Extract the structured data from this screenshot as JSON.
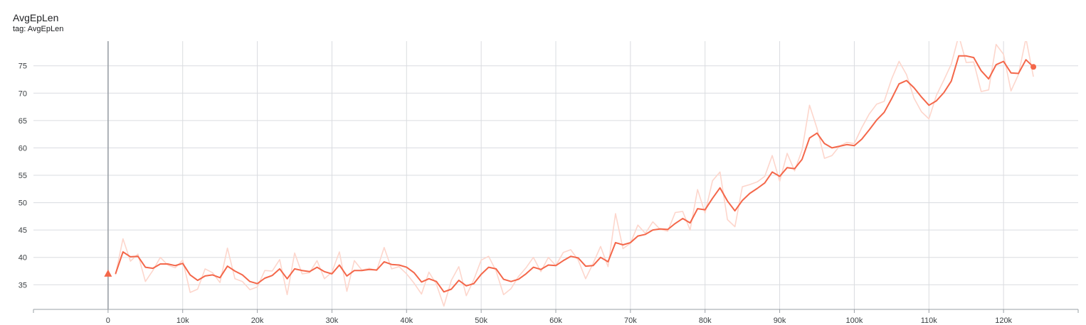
{
  "header": {
    "title": "AvgEpLen",
    "subtitle": "tag: AvgEpLen"
  },
  "colors": {
    "smoothed": "#f4674a",
    "raw": "#fdd6cc",
    "grid": "#dadce0",
    "axis": "#9aa0a6"
  },
  "chart_data": {
    "type": "line",
    "title": "AvgEpLen",
    "subtitle": "tag: AvgEpLen",
    "xlabel": "",
    "ylabel": "",
    "xlim": [
      -10000,
      130000
    ],
    "ylim": [
      30.5,
      79.5
    ],
    "x_ticks": [
      0,
      10000,
      20000,
      30000,
      40000,
      50000,
      60000,
      70000,
      80000,
      90000,
      100000,
      110000,
      120000
    ],
    "x_tick_labels": [
      "0",
      "10k",
      "20k",
      "30k",
      "40k",
      "50k",
      "60k",
      "70k",
      "80k",
      "90k",
      "100k",
      "110k",
      "120k"
    ],
    "y_ticks": [
      35,
      40,
      45,
      50,
      55,
      60,
      65,
      70,
      75
    ],
    "y_tick_labels": [
      "35",
      "40",
      "45",
      "50",
      "55",
      "60",
      "65",
      "70",
      "75"
    ],
    "grid": true,
    "x": [
      1000,
      2000,
      3000,
      4000,
      5000,
      6000,
      7000,
      8000,
      9000,
      10000,
      11000,
      12000,
      13000,
      14000,
      15000,
      16000,
      17000,
      18000,
      19000,
      20000,
      21000,
      22000,
      23000,
      24000,
      25000,
      26000,
      27000,
      28000,
      29000,
      30000,
      31000,
      32000,
      33000,
      34000,
      35000,
      36000,
      37000,
      38000,
      39000,
      40000,
      41000,
      42000,
      43000,
      44000,
      45000,
      46000,
      47000,
      48000,
      49000,
      50000,
      51000,
      52000,
      53000,
      54000,
      55000,
      56000,
      57000,
      58000,
      59000,
      60000,
      61000,
      62000,
      63000,
      64000,
      65000,
      66000,
      67000,
      68000,
      69000,
      70000,
      71000,
      72000,
      73000,
      74000,
      75000,
      76000,
      77000,
      78000,
      79000,
      80000,
      81000,
      82000,
      83000,
      84000,
      85000,
      86000,
      87000,
      88000,
      89000,
      90000,
      91000,
      92000,
      93000,
      94000,
      95000,
      96000,
      97000,
      98000,
      99000,
      100000,
      101000,
      102000,
      103000,
      104000,
      105000,
      106000,
      107000,
      108000,
      109000,
      110000,
      111000,
      112000,
      113000,
      114000,
      115000,
      116000,
      117000,
      118000,
      119000,
      120000,
      121000,
      122000,
      123000,
      124000
    ],
    "series": [
      {
        "role": "raw",
        "values": [
          36.8,
          43.4,
          39.3,
          40.6,
          35.6,
          37.6,
          40.0,
          38.6,
          38.1,
          39.5,
          33.6,
          34.2,
          37.9,
          37.2,
          35.4,
          41.7,
          36.1,
          35.6,
          34.1,
          34.6,
          37.6,
          37.5,
          39.6,
          33.2,
          40.8,
          37.0,
          37.2,
          39.4,
          36.1,
          37.3,
          41.0,
          33.8,
          39.4,
          37.7,
          38.0,
          37.6,
          41.8,
          37.9,
          38.3,
          37.0,
          35.3,
          33.3,
          37.3,
          35.1,
          31.1,
          35.8,
          38.3,
          33.0,
          35.9,
          39.5,
          40.2,
          37.5,
          33.2,
          34.3,
          36.5,
          38.1,
          40.0,
          37.4,
          40.0,
          38.5,
          40.9,
          41.4,
          39.5,
          36.1,
          38.9,
          42.0,
          38.3,
          48.0,
          41.6,
          42.6,
          45.9,
          44.4,
          46.5,
          45.1,
          44.8,
          48.2,
          48.4,
          45.0,
          52.4,
          48.1,
          54.0,
          55.6,
          46.9,
          45.6,
          52.9,
          53.3,
          53.8,
          54.8,
          58.6,
          53.9,
          59.0,
          55.8,
          59.6,
          67.8,
          63.6,
          58.1,
          58.6,
          60.3,
          61.0,
          60.8,
          63.7,
          66.2,
          68.0,
          68.5,
          72.6,
          75.8,
          73.4,
          69.1,
          66.6,
          65.3,
          69.6,
          72.4,
          75.3,
          80.5,
          75.6,
          75.7,
          70.3,
          70.6,
          78.9,
          77.1,
          70.4,
          73.4,
          80.0,
          73.0
        ]
      },
      {
        "role": "smoothed",
        "values": [
          37.0,
          41.0,
          40.1,
          40.2,
          38.2,
          38.0,
          38.8,
          38.8,
          38.5,
          38.9,
          36.8,
          35.8,
          36.6,
          36.8,
          36.3,
          38.4,
          37.5,
          36.8,
          35.6,
          35.2,
          36.2,
          36.7,
          37.9,
          36.1,
          37.9,
          37.6,
          37.4,
          38.2,
          37.4,
          37.0,
          38.6,
          36.6,
          37.6,
          37.6,
          37.8,
          37.7,
          39.2,
          38.7,
          38.6,
          38.2,
          37.2,
          35.5,
          36.1,
          35.6,
          33.7,
          34.2,
          35.8,
          34.8,
          35.2,
          36.9,
          38.2,
          37.9,
          36.0,
          35.6,
          36.0,
          37.0,
          38.2,
          37.8,
          38.6,
          38.5,
          39.4,
          40.2,
          39.9,
          38.4,
          38.5,
          40.0,
          39.2,
          42.7,
          42.3,
          42.7,
          43.9,
          44.2,
          45.0,
          45.2,
          45.1,
          46.2,
          47.1,
          46.3,
          48.9,
          48.7,
          50.8,
          52.7,
          50.3,
          48.5,
          50.4,
          51.7,
          52.6,
          53.6,
          55.6,
          54.8,
          56.4,
          56.2,
          57.9,
          61.8,
          62.7,
          60.8,
          60.0,
          60.3,
          60.6,
          60.4,
          61.6,
          63.3,
          65.1,
          66.5,
          69.0,
          71.7,
          72.3,
          71.0,
          69.3,
          67.8,
          68.6,
          70.1,
          72.2,
          76.8,
          76.8,
          76.5,
          74.1,
          72.6,
          75.2,
          75.8,
          73.7,
          73.6,
          76.1,
          74.8
        ]
      }
    ]
  }
}
